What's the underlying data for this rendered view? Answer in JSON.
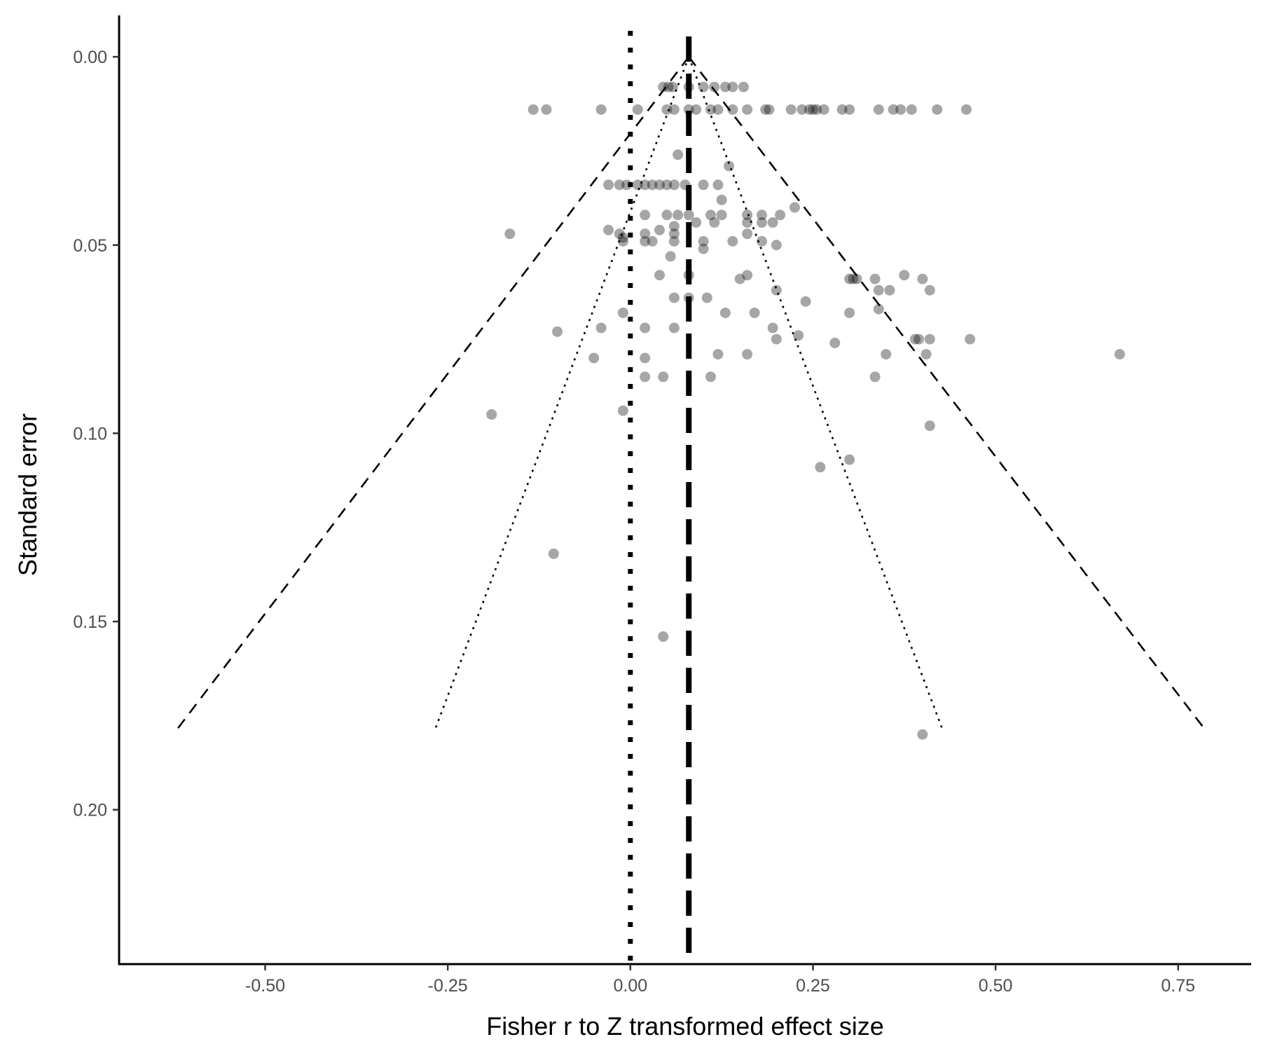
{
  "chart_data": {
    "type": "scatter",
    "subtype": "funnel plot",
    "title": "",
    "xlabel": "Fisher r to Z transformed effect size",
    "ylabel": "Standard error",
    "xlim": [
      -0.7,
      0.85
    ],
    "ylim": [
      0.241,
      -0.011
    ],
    "y_reversed": true,
    "grid": false,
    "x_ticks": [
      {
        "value": -0.5,
        "label": "-0.50"
      },
      {
        "value": -0.25,
        "label": "-0.25"
      },
      {
        "value": 0.0,
        "label": "0.00"
      },
      {
        "value": 0.25,
        "label": "0.25"
      },
      {
        "value": 0.5,
        "label": "0.50"
      },
      {
        "value": 0.75,
        "label": "0.75"
      }
    ],
    "y_ticks": [
      {
        "value": 0.0,
        "label": "0.00"
      },
      {
        "value": 0.05,
        "label": "0.05"
      },
      {
        "value": 0.1,
        "label": "0.10"
      },
      {
        "value": 0.15,
        "label": "0.15"
      },
      {
        "value": 0.2,
        "label": "0.20"
      }
    ],
    "reference_lines": {
      "null_effect": 0.0,
      "pooled_effect": 0.08,
      "funnel_apex": [
        0.08,
        0.0
      ],
      "funnel_bottom_se": 0.179,
      "ci_95_dashed": {
        "left": -0.622,
        "right": 0.788
      },
      "ci_outer_dotted": {
        "left": -0.268,
        "right": 0.428
      }
    },
    "point_color": "#000000",
    "point_opacity": 0.35,
    "points": [
      {
        "x": 0.045,
        "y": 0.008
      },
      {
        "x": 0.052,
        "y": 0.008
      },
      {
        "x": 0.058,
        "y": 0.008
      },
      {
        "x": 0.08,
        "y": 0.008
      },
      {
        "x": 0.1,
        "y": 0.008
      },
      {
        "x": 0.115,
        "y": 0.008
      },
      {
        "x": 0.13,
        "y": 0.008
      },
      {
        "x": 0.14,
        "y": 0.008
      },
      {
        "x": 0.155,
        "y": 0.008
      },
      {
        "x": -0.133,
        "y": 0.014
      },
      {
        "x": -0.115,
        "y": 0.014
      },
      {
        "x": -0.04,
        "y": 0.014
      },
      {
        "x": 0.01,
        "y": 0.014
      },
      {
        "x": 0.05,
        "y": 0.014
      },
      {
        "x": 0.06,
        "y": 0.014
      },
      {
        "x": 0.08,
        "y": 0.014
      },
      {
        "x": 0.09,
        "y": 0.014
      },
      {
        "x": 0.11,
        "y": 0.014
      },
      {
        "x": 0.12,
        "y": 0.014
      },
      {
        "x": 0.14,
        "y": 0.014
      },
      {
        "x": 0.16,
        "y": 0.014
      },
      {
        "x": 0.185,
        "y": 0.014
      },
      {
        "x": 0.19,
        "y": 0.014
      },
      {
        "x": 0.22,
        "y": 0.014
      },
      {
        "x": 0.235,
        "y": 0.014
      },
      {
        "x": 0.245,
        "y": 0.014
      },
      {
        "x": 0.25,
        "y": 0.014
      },
      {
        "x": 0.255,
        "y": 0.014
      },
      {
        "x": 0.265,
        "y": 0.014
      },
      {
        "x": 0.29,
        "y": 0.014
      },
      {
        "x": 0.3,
        "y": 0.014
      },
      {
        "x": 0.34,
        "y": 0.014
      },
      {
        "x": 0.36,
        "y": 0.014
      },
      {
        "x": 0.37,
        "y": 0.014
      },
      {
        "x": 0.385,
        "y": 0.014
      },
      {
        "x": 0.42,
        "y": 0.014
      },
      {
        "x": 0.46,
        "y": 0.014
      },
      {
        "x": 0.065,
        "y": 0.026
      },
      {
        "x": 0.135,
        "y": 0.029
      },
      {
        "x": -0.015,
        "y": 0.034
      },
      {
        "x": -0.005,
        "y": 0.034
      },
      {
        "x": 0.01,
        "y": 0.034
      },
      {
        "x": 0.02,
        "y": 0.034
      },
      {
        "x": 0.03,
        "y": 0.034
      },
      {
        "x": 0.04,
        "y": 0.034
      },
      {
        "x": 0.05,
        "y": 0.034
      },
      {
        "x": 0.06,
        "y": 0.034
      },
      {
        "x": 0.075,
        "y": 0.034
      },
      {
        "x": 0.12,
        "y": 0.034
      },
      {
        "x": 0.1,
        "y": 0.034
      },
      {
        "x": -0.03,
        "y": 0.034
      },
      {
        "x": 0.125,
        "y": 0.038
      },
      {
        "x": 0.02,
        "y": 0.042
      },
      {
        "x": 0.05,
        "y": 0.042
      },
      {
        "x": 0.065,
        "y": 0.042
      },
      {
        "x": 0.08,
        "y": 0.042
      },
      {
        "x": 0.11,
        "y": 0.042
      },
      {
        "x": 0.125,
        "y": 0.042
      },
      {
        "x": 0.16,
        "y": 0.042
      },
      {
        "x": 0.18,
        "y": 0.042
      },
      {
        "x": 0.205,
        "y": 0.042
      },
      {
        "x": 0.225,
        "y": 0.04
      },
      {
        "x": 0.06,
        "y": 0.045
      },
      {
        "x": 0.09,
        "y": 0.044
      },
      {
        "x": 0.115,
        "y": 0.044
      },
      {
        "x": 0.16,
        "y": 0.044
      },
      {
        "x": 0.18,
        "y": 0.044
      },
      {
        "x": 0.195,
        "y": 0.044
      },
      {
        "x": -0.165,
        "y": 0.047
      },
      {
        "x": -0.03,
        "y": 0.046
      },
      {
        "x": -0.015,
        "y": 0.047
      },
      {
        "x": -0.01,
        "y": 0.048
      },
      {
        "x": 0.02,
        "y": 0.047
      },
      {
        "x": 0.04,
        "y": 0.046
      },
      {
        "x": 0.06,
        "y": 0.047
      },
      {
        "x": 0.16,
        "y": 0.047
      },
      {
        "x": -0.01,
        "y": 0.049
      },
      {
        "x": 0.02,
        "y": 0.049
      },
      {
        "x": 0.03,
        "y": 0.049
      },
      {
        "x": 0.06,
        "y": 0.049
      },
      {
        "x": 0.1,
        "y": 0.049
      },
      {
        "x": 0.14,
        "y": 0.049
      },
      {
        "x": 0.18,
        "y": 0.049
      },
      {
        "x": 0.2,
        "y": 0.05
      },
      {
        "x": 0.1,
        "y": 0.051
      },
      {
        "x": 0.055,
        "y": 0.053
      },
      {
        "x": 0.04,
        "y": 0.058
      },
      {
        "x": 0.08,
        "y": 0.058
      },
      {
        "x": 0.15,
        "y": 0.059
      },
      {
        "x": 0.16,
        "y": 0.058
      },
      {
        "x": 0.3,
        "y": 0.059
      },
      {
        "x": 0.305,
        "y": 0.059
      },
      {
        "x": 0.31,
        "y": 0.059
      },
      {
        "x": 0.335,
        "y": 0.059
      },
      {
        "x": 0.375,
        "y": 0.058
      },
      {
        "x": 0.4,
        "y": 0.059
      },
      {
        "x": 0.34,
        "y": 0.062
      },
      {
        "x": 0.355,
        "y": 0.062
      },
      {
        "x": 0.2,
        "y": 0.062
      },
      {
        "x": 0.41,
        "y": 0.062
      },
      {
        "x": 0.06,
        "y": 0.064
      },
      {
        "x": 0.08,
        "y": 0.064
      },
      {
        "x": 0.105,
        "y": 0.064
      },
      {
        "x": 0.24,
        "y": 0.065
      },
      {
        "x": -0.01,
        "y": 0.068
      },
      {
        "x": 0.13,
        "y": 0.068
      },
      {
        "x": 0.17,
        "y": 0.068
      },
      {
        "x": 0.3,
        "y": 0.068
      },
      {
        "x": 0.34,
        "y": 0.067
      },
      {
        "x": -0.04,
        "y": 0.072
      },
      {
        "x": 0.02,
        "y": 0.072
      },
      {
        "x": 0.06,
        "y": 0.072
      },
      {
        "x": 0.195,
        "y": 0.072
      },
      {
        "x": -0.1,
        "y": 0.073
      },
      {
        "x": 0.2,
        "y": 0.075
      },
      {
        "x": 0.23,
        "y": 0.074
      },
      {
        "x": 0.395,
        "y": 0.075
      },
      {
        "x": 0.39,
        "y": 0.075
      },
      {
        "x": 0.41,
        "y": 0.075
      },
      {
        "x": 0.465,
        "y": 0.075
      },
      {
        "x": 0.28,
        "y": 0.076
      },
      {
        "x": -0.05,
        "y": 0.08
      },
      {
        "x": 0.02,
        "y": 0.08
      },
      {
        "x": 0.12,
        "y": 0.079
      },
      {
        "x": 0.16,
        "y": 0.079
      },
      {
        "x": 0.35,
        "y": 0.079
      },
      {
        "x": 0.405,
        "y": 0.079
      },
      {
        "x": 0.67,
        "y": 0.079
      },
      {
        "x": 0.02,
        "y": 0.085
      },
      {
        "x": 0.045,
        "y": 0.085
      },
      {
        "x": 0.11,
        "y": 0.085
      },
      {
        "x": 0.335,
        "y": 0.085
      },
      {
        "x": -0.19,
        "y": 0.095
      },
      {
        "x": -0.01,
        "y": 0.094
      },
      {
        "x": 0.41,
        "y": 0.098
      },
      {
        "x": 0.26,
        "y": 0.109
      },
      {
        "x": 0.3,
        "y": 0.107
      },
      {
        "x": -0.105,
        "y": 0.132
      },
      {
        "x": 0.045,
        "y": 0.154
      },
      {
        "x": 0.4,
        "y": 0.18
      }
    ]
  }
}
